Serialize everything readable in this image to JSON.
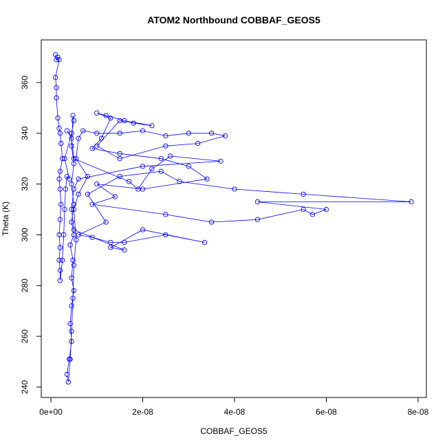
{
  "chart_data": {
    "type": "line",
    "title": "ATOM2 Northbound COBBAF_GEOS5",
    "xlabel": "COBBAF_GEOS5",
    "ylabel": "Theta (K)",
    "color": "#0000ff",
    "markers": "open-circle",
    "xlim": [
      -2.1e-09,
      8.18e-08
    ],
    "ylim": [
      235.9,
      376.8
    ],
    "xticks": [
      {
        "value": 0,
        "label": "0e+00"
      },
      {
        "value": 2e-08,
        "label": "2e-08"
      },
      {
        "value": 4e-08,
        "label": "4e-08"
      },
      {
        "value": 6e-08,
        "label": "6e-08"
      },
      {
        "value": 8e-08,
        "label": "8e-08"
      }
    ],
    "yticks": [
      240,
      260,
      280,
      300,
      320,
      340,
      360
    ],
    "x": [
      1e-09,
      1.2e-09,
      1.5e-09,
      1.8e-09,
      1e-09,
      1.2e-09,
      1.2e-09,
      1.5e-09,
      1.8e-09,
      2e-09,
      2.2e-09,
      2.5e-09,
      2e-09,
      1.8e-09,
      2e-09,
      2.2e-09,
      2e-09,
      1.8e-09,
      2e-09,
      1.8e-09,
      2e-09,
      2e-09,
      2.5e-09,
      2.8e-09,
      3e-09,
      3.2e-09,
      3.5e-09,
      4e-09,
      3e-09,
      4.5e-09,
      5e-09,
      4.8e-09,
      4.5e-09,
      5e-09,
      4.5e-09,
      5e-09,
      4.5e-09,
      5e-09,
      4.2e-09,
      4.8e-09,
      4.5e-09,
      5e-09,
      4.5e-09,
      4.2e-09,
      4.5e-09,
      4e-09,
      3.5e-09,
      3.8e-09,
      4.2e-09,
      4.5e-09,
      4.8e-09,
      5e-09,
      5.5e-09,
      5e-09,
      6e-09,
      8e-09,
      5.5e-09,
      6e-09,
      7e-09,
      1e-08,
      1.5e-08,
      2e-08,
      2.5e-08,
      3e-08,
      3.5e-08,
      3.8e-08,
      3.2e-08,
      2.5e-08,
      1.5e-08,
      1e-08,
      1.5e-08,
      1.8e-08,
      2.2e-08,
      1.6e-08,
      1.2e-08,
      1e-08,
      1.3e-08,
      1.1e-08,
      9e-09,
      1.5e-08,
      2.4e-08,
      3e-08,
      3.4e-08,
      2e-08,
      1e-08,
      1.4e-08,
      9e-09,
      2.5e-08,
      3.5e-08,
      4.5e-08,
      5.5e-08,
      5.7e-08,
      6e-08,
      4.5e-08,
      7.85e-08,
      5.5e-08,
      4e-08,
      2.8e-08,
      2.4e-08,
      1.5e-08,
      8e-09,
      1.2e-08,
      6e-09,
      9e-09,
      1.3e-08,
      1.6e-08,
      2.5e-08,
      3.35e-08,
      2e-08,
      1.3e-08,
      1.6e-08,
      5e-09,
      4.5e-09,
      5e-09,
      6e-09,
      2e-08,
      3.7e-08,
      2.6e-08,
      2.2e-08,
      1.9e-08,
      1.7e-08,
      5e-09,
      4.5e-09,
      3.5e-09
    ],
    "values": [
      371,
      369,
      370,
      369,
      362,
      358,
      354,
      346,
      342,
      340,
      336,
      330,
      325,
      322,
      318,
      312,
      306,
      300,
      295,
      290,
      286,
      282,
      290,
      300,
      310,
      318,
      323,
      322,
      330,
      340,
      345,
      347,
      335,
      328,
      320,
      312,
      305,
      300,
      296,
      290,
      283,
      278,
      272,
      265,
      258,
      251,
      245,
      242,
      251,
      262,
      275,
      288,
      298,
      310,
      316,
      323,
      330,
      338,
      341,
      340,
      340,
      341,
      339,
      340,
      340,
      339,
      336,
      335,
      330,
      335,
      345,
      344,
      343,
      345,
      347,
      348,
      346,
      338,
      334,
      332,
      330,
      327,
      322,
      318,
      320,
      315,
      312,
      308,
      305,
      306,
      310,
      308,
      310,
      313,
      313,
      316,
      318,
      321,
      325,
      323,
      316,
      305,
      300,
      299,
      297,
      297,
      300,
      297,
      302,
      295,
      294,
      302,
      310,
      318,
      322,
      327,
      329,
      331,
      326,
      318,
      321,
      330,
      338,
      341
    ]
  }
}
